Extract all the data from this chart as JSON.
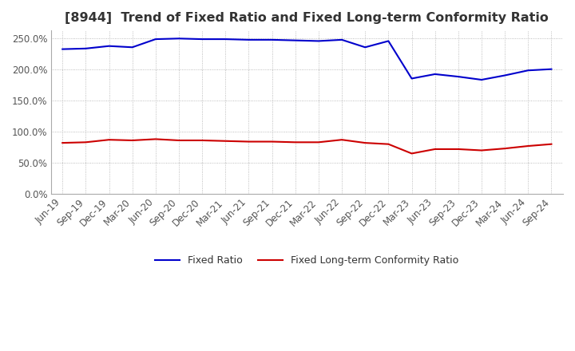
{
  "title": "[8944]  Trend of Fixed Ratio and Fixed Long-term Conformity Ratio",
  "title_fontsize": 11.5,
  "x_labels": [
    "Jun-19",
    "Sep-19",
    "Dec-19",
    "Mar-20",
    "Jun-20",
    "Sep-20",
    "Dec-20",
    "Mar-21",
    "Jun-21",
    "Sep-21",
    "Dec-21",
    "Mar-22",
    "Jun-22",
    "Sep-22",
    "Dec-22",
    "Mar-23",
    "Jun-23",
    "Sep-23",
    "Dec-23",
    "Mar-24",
    "Jun-24",
    "Sep-24"
  ],
  "fixed_ratio": [
    232,
    233,
    237,
    235,
    248,
    249,
    248,
    248,
    247,
    247,
    246,
    245,
    247,
    235,
    245,
    185,
    192,
    188,
    183,
    190,
    198,
    200
  ],
  "fixed_lt_ratio": [
    82,
    83,
    87,
    86,
    88,
    86,
    86,
    85,
    84,
    84,
    83,
    83,
    87,
    82,
    80,
    65,
    72,
    72,
    70,
    73,
    77,
    80
  ],
  "ylim": [
    0,
    262
  ],
  "yticks": [
    0,
    50,
    100,
    150,
    200,
    250
  ],
  "ytick_labels": [
    "0.0%",
    "50.0%",
    "100.0%",
    "150.0%",
    "200.0%",
    "250.0%"
  ],
  "fixed_ratio_color": "#0000cc",
  "fixed_lt_ratio_color": "#cc0000",
  "grid_color": "#aaaaaa",
  "bg_color": "#ffffff",
  "plot_bg_color": "#ffffff",
  "legend_labels": [
    "Fixed Ratio",
    "Fixed Long-term Conformity Ratio"
  ],
  "line_width": 1.5,
  "tick_fontsize": 8.5,
  "legend_fontsize": 9
}
